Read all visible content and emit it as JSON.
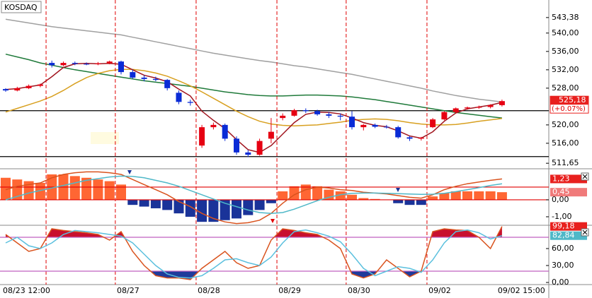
{
  "chart_data": [
    {
      "type": "candlestick",
      "title": "KOSDAQ",
      "categories": [
        "08/23 12:00",
        null,
        null,
        null,
        null,
        null,
        null,
        null,
        null,
        null,
        "08/27",
        null,
        null,
        null,
        null,
        null,
        null,
        "08/28",
        null,
        null,
        null,
        null,
        null,
        null,
        "08/29",
        null,
        null,
        null,
        null,
        null,
        "08/30",
        null,
        null,
        null,
        null,
        null,
        null,
        "09/02",
        null,
        null,
        null,
        null,
        null,
        "09/02 15:00"
      ],
      "session_starts": [
        4,
        10,
        17,
        24,
        30,
        37
      ],
      "open": [
        527.8,
        527.5,
        528,
        528.5,
        533.5,
        533,
        533.5,
        533.3,
        533.2,
        533.4,
        533.8,
        531.5,
        530.3,
        530,
        529.8,
        527,
        525,
        515.5,
        519.5,
        520,
        517,
        514,
        513.5,
        517,
        521.5,
        522,
        523.2,
        523,
        522.3,
        522,
        521.8,
        519.5,
        520,
        519.6,
        519.5,
        517.3,
        517,
        519.5,
        521.2,
        522.8,
        523.6,
        523.8,
        523.9,
        524.3
      ],
      "high": [
        528,
        528.3,
        528.8,
        529,
        534,
        533.8,
        533.8,
        533.6,
        533.7,
        534,
        534,
        532,
        530.8,
        530.5,
        530,
        527.5,
        525.5,
        520,
        520.5,
        520.3,
        517.5,
        514.5,
        517,
        521.5,
        522.5,
        523.5,
        523.6,
        523.3,
        522.8,
        522.5,
        523,
        520.2,
        520.3,
        520,
        519.8,
        517.6,
        517.4,
        521.5,
        523,
        523.8,
        524,
        524.2,
        524.5,
        525.5
      ],
      "low": [
        527.2,
        527.3,
        527.8,
        528.2,
        532.5,
        532.8,
        533,
        533,
        533,
        533.2,
        531,
        530,
        529.5,
        529.5,
        527.5,
        524.5,
        524.2,
        515,
        519,
        516.5,
        513.5,
        513,
        513.3,
        516,
        521,
        521.8,
        522.6,
        522,
        521.5,
        521,
        519,
        518.8,
        519.3,
        519.2,
        517,
        516.5,
        516.6,
        519.3,
        521,
        522.5,
        523.3,
        523.5,
        523.6,
        524
      ],
      "close": [
        527.5,
        528,
        528.5,
        528.8,
        533,
        533.5,
        533.3,
        533.2,
        533.4,
        533.8,
        531.5,
        530.3,
        530,
        529.8,
        528,
        525,
        524.8,
        519.5,
        520,
        517,
        514,
        513.5,
        516.5,
        518.5,
        522,
        523.2,
        523,
        522.3,
        522,
        521.8,
        519.5,
        520,
        519.6,
        519.5,
        517.3,
        517,
        517.2,
        521.2,
        522.8,
        523.6,
        523.8,
        523.9,
        524.3,
        525.18
      ],
      "up_color": "#e60012",
      "down_color": "#0a2bd6",
      "lines": [
        {
          "color": "#a0a0a0",
          "values": [
            543.0,
            542.6,
            542.2,
            541.8,
            541.4,
            541.1,
            540.8,
            540.5,
            540.2,
            539.9,
            539.6,
            539.1,
            538.6,
            538.1,
            537.6,
            537.1,
            536.6,
            536.1,
            535.6,
            535.2,
            534.8,
            534.4,
            534.0,
            533.7,
            533.3,
            532.9,
            532.6,
            532.2,
            531.8,
            531.4,
            531.0,
            530.5,
            530.0,
            529.5,
            529.0,
            528.5,
            528.0,
            527.4,
            526.9,
            526.4,
            526.0,
            525.6,
            525.3,
            525.0
          ]
        },
        {
          "color": "#1f7a3a",
          "values": [
            535.4,
            534.8,
            534.2,
            533.5,
            533.0,
            532.5,
            532.0,
            531.6,
            531.2,
            530.8,
            530.4,
            530.0,
            529.6,
            529.3,
            529.0,
            528.7,
            528.4,
            528.0,
            527.6,
            527.2,
            526.9,
            526.6,
            526.4,
            526.3,
            526.3,
            526.4,
            526.5,
            526.5,
            526.4,
            526.3,
            526.1,
            525.8,
            525.5,
            525.1,
            524.7,
            524.3,
            523.9,
            523.5,
            523.1,
            522.7,
            522.4,
            522.1,
            521.8,
            521.5
          ]
        },
        {
          "color": "#d8a020",
          "values": [
            522.8,
            523.6,
            524.4,
            525.2,
            526.2,
            527.5,
            529.0,
            530.3,
            531.2,
            531.8,
            532.1,
            532.1,
            531.8,
            531.3,
            530.6,
            529.6,
            528.5,
            527.2,
            525.8,
            524.4,
            523.0,
            521.8,
            520.8,
            520.2,
            519.9,
            519.8,
            519.9,
            520.0,
            520.3,
            520.6,
            521.0,
            521.2,
            521.3,
            521.2,
            520.9,
            520.5,
            520.2,
            520.0,
            520.0,
            520.1,
            520.4,
            520.8,
            521.1,
            521.4
          ]
        },
        {
          "color": "#a0141e",
          "values": [
            527.7,
            527.9,
            528.3,
            528.7,
            530.5,
            532.5,
            533.3,
            533.4,
            533.3,
            533.4,
            533.2,
            532.0,
            530.8,
            530.2,
            529.4,
            527.8,
            526.3,
            523.0,
            521.0,
            519.2,
            516.8,
            514.6,
            514.0,
            515.5,
            518.0,
            520.5,
            522.3,
            522.8,
            522.7,
            522.4,
            521.5,
            520.5,
            519.9,
            519.6,
            518.7,
            517.6,
            517.1,
            518.5,
            520.8,
            522.6,
            523.5,
            523.9,
            524.3,
            524.9
          ]
        }
      ],
      "hlines": [
        {
          "value": 523.1,
          "color": "#000000"
        },
        {
          "value": 513.1,
          "color": "#000000"
        }
      ],
      "ylim": [
        510.6,
        547.2
      ],
      "yticks": [
        {
          "value": 543.38,
          "label": "543,38"
        },
        {
          "value": 540,
          "label": "540,00"
        },
        {
          "value": 536,
          "label": "536,00"
        },
        {
          "value": 532,
          "label": "532,00"
        },
        {
          "value": 528,
          "label": "528,00"
        },
        {
          "value": 520,
          "label": "520,00"
        },
        {
          "value": 516,
          "label": "516,00"
        },
        {
          "value": 511.65,
          "label": "511,65"
        }
      ],
      "last": {
        "value": 525.18,
        "label": "525,18"
      },
      "change": "(+0.07%)"
    },
    {
      "type": "macd",
      "histogram": [
        1.3,
        1.2,
        1.1,
        1.0,
        1.5,
        1.5,
        1.4,
        1.3,
        1.2,
        1.1,
        0.9,
        -0.3,
        -0.4,
        -0.5,
        -0.6,
        -0.8,
        -1.0,
        -1.3,
        -1.3,
        -1.2,
        -1.1,
        -0.9,
        -0.6,
        -0.2,
        0.5,
        0.8,
        0.9,
        0.8,
        0.6,
        0.5,
        0.3,
        0.1,
        0.05,
        0.0,
        -0.2,
        -0.3,
        -0.3,
        0.2,
        0.4,
        0.5,
        0.5,
        0.5,
        0.5,
        0.45
      ],
      "up_color": "#ff6633",
      "down_color": "#1a3399",
      "lines": [
        {
          "color": "#d9531e",
          "values": [
            0.6,
            0.8,
            0.9,
            1.0,
            1.3,
            1.5,
            1.6,
            1.65,
            1.65,
            1.6,
            1.5,
            1.2,
            0.9,
            0.6,
            0.3,
            -0.1,
            -0.4,
            -0.8,
            -1.1,
            -1.3,
            -1.4,
            -1.35,
            -1.2,
            -0.8,
            -0.2,
            0.3,
            0.6,
            0.75,
            0.7,
            0.6,
            0.55,
            0.45,
            0.4,
            0.35,
            0.25,
            0.15,
            0.1,
            0.3,
            0.6,
            0.8,
            0.95,
            1.05,
            1.15,
            1.23
          ]
        },
        {
          "color": "#4fb8c8",
          "values": [
            0.0,
            0.2,
            0.4,
            0.55,
            0.7,
            0.85,
            1.0,
            1.15,
            1.25,
            1.35,
            1.4,
            1.38,
            1.3,
            1.15,
            1.0,
            0.8,
            0.55,
            0.3,
            0.05,
            -0.2,
            -0.4,
            -0.6,
            -0.75,
            -0.8,
            -0.75,
            -0.55,
            -0.3,
            -0.05,
            0.15,
            0.3,
            0.38,
            0.4,
            0.4,
            0.38,
            0.36,
            0.34,
            0.32,
            0.33,
            0.38,
            0.48,
            0.6,
            0.72,
            0.85,
            0.95
          ]
        }
      ],
      "hlines": [
        {
          "value": 0.75,
          "color": "#e00000"
        },
        {
          "value": 0,
          "color": "#e00000"
        }
      ],
      "ylim": [
        -1.46,
        1.79
      ],
      "yticks": [
        {
          "value": 0,
          "label": "0,00"
        },
        {
          "value": -1,
          "label": "-1,00"
        }
      ],
      "last_labels": [
        {
          "value": 1.23,
          "label": "1,23",
          "color": "#e8201e"
        },
        {
          "value": 0.45,
          "label": "0,45",
          "color": "#f07a7a"
        }
      ]
    },
    {
      "type": "stochastic",
      "lines": [
        {
          "color": "#d9531e",
          "values": [
            85,
            70,
            55,
            60,
            95,
            92,
            90,
            88,
            85,
            75,
            90,
            55,
            30,
            12,
            8,
            8,
            5,
            25,
            40,
            55,
            35,
            25,
            30,
            75,
            95,
            92,
            88,
            85,
            75,
            60,
            15,
            8,
            15,
            40,
            25,
            10,
            20,
            90,
            95,
            93,
            92,
            80,
            60,
            99.18
          ]
        },
        {
          "color": "#5bc0de",
          "values": [
            70,
            80,
            65,
            60,
            70,
            85,
            92,
            90,
            88,
            85,
            82,
            70,
            50,
            30,
            15,
            9,
            8,
            12,
            25,
            40,
            42,
            35,
            30,
            45,
            70,
            90,
            93,
            88,
            82,
            72,
            50,
            25,
            12,
            20,
            28,
            25,
            18,
            40,
            70,
            90,
            93,
            88,
            77,
            82.84
          ]
        }
      ],
      "levels": [
        {
          "value": 80,
          "color": "#c060c0",
          "fill": "#c8102e",
          "side": "above"
        },
        {
          "value": 20,
          "color": "#c060c0",
          "fill": "#1f3b9b",
          "side": "below"
        }
      ],
      "ylim": [
        -3.75,
        100
      ],
      "yticks": [
        {
          "value": 60,
          "label": "60,00"
        },
        {
          "value": 30,
          "label": "30,00"
        },
        {
          "value": 0,
          "label": "0,00"
        }
      ],
      "last_labels": [
        {
          "value": 99.18,
          "label": "99,18",
          "color": "#e8201e"
        },
        {
          "value": 82.84,
          "label": "82,84",
          "color": "#4fb8c8"
        }
      ]
    }
  ]
}
